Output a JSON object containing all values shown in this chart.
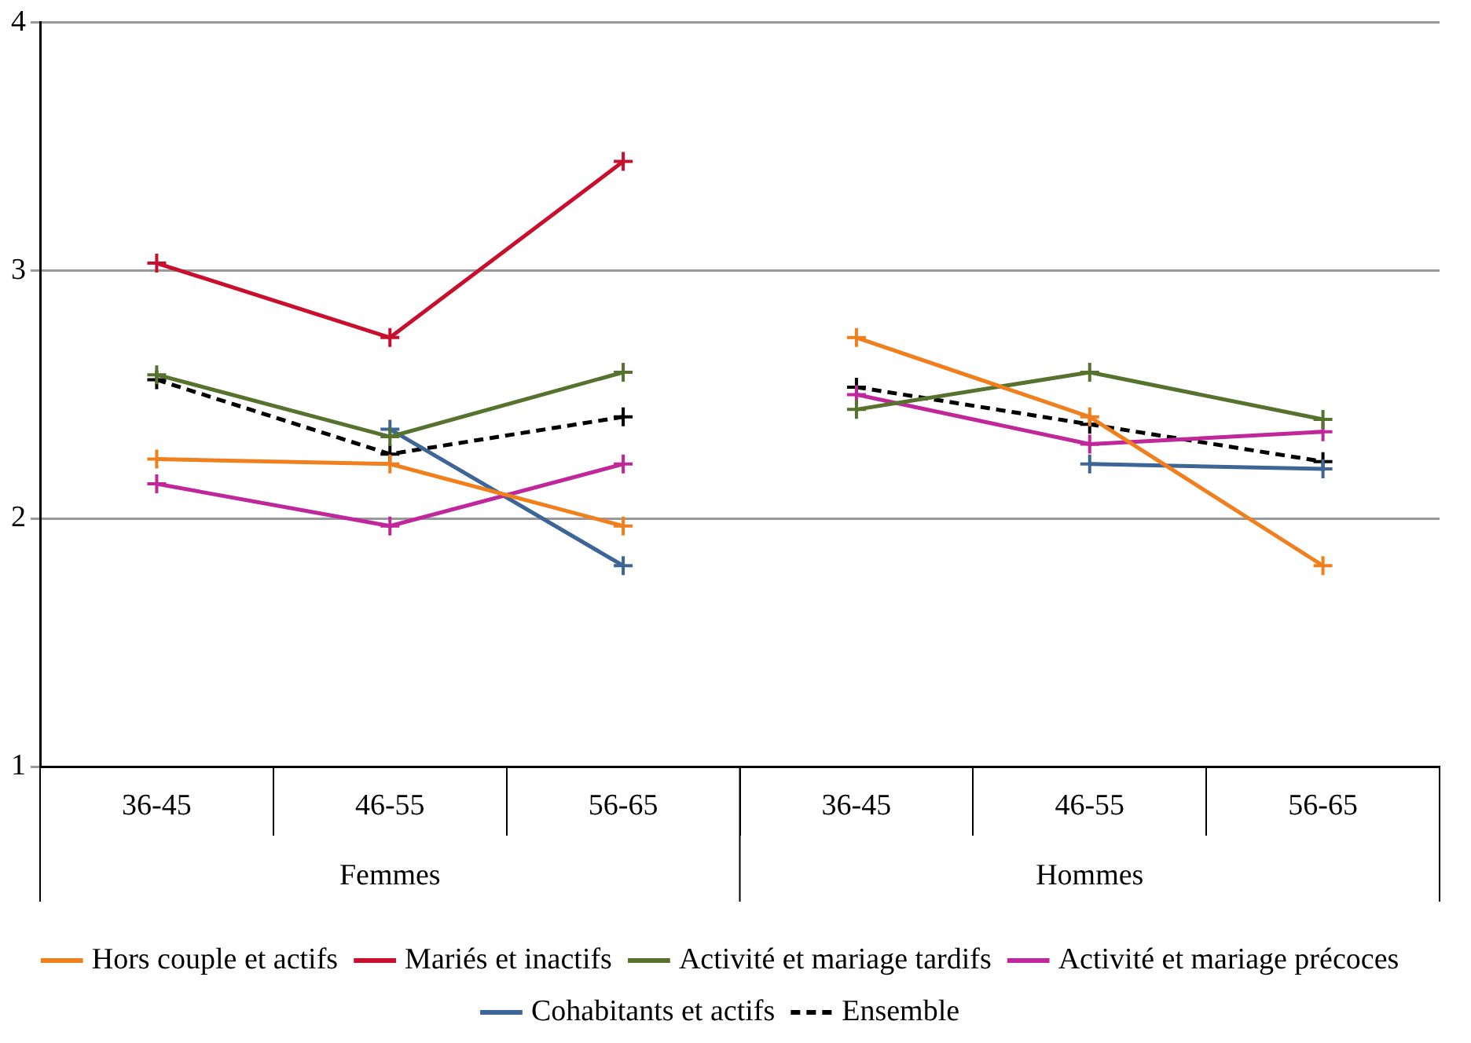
{
  "chart_data": {
    "type": "line",
    "categories": [
      "36-45",
      "46-55",
      "56-65",
      "36-45",
      "46-55",
      "56-65"
    ],
    "annotations": [
      "Femmes",
      "Hommes"
    ],
    "ylim": [
      1,
      4
    ],
    "yticks": [
      1,
      2,
      3,
      4
    ],
    "grid": "y",
    "legend": "bottom",
    "marker": "cross",
    "line_style": "solid",
    "series": [
      {
        "name": "Hors couple et actifs",
        "color": "#f07f1e",
        "values": [
          2.24,
          2.22,
          1.97,
          2.73,
          2.41,
          1.81
        ]
      },
      {
        "name": "Mariés et inactifs",
        "color": "#c8102e",
        "values": [
          3.03,
          2.73,
          3.44,
          null,
          null,
          null
        ]
      },
      {
        "name": "Activité et mariage tardifs",
        "color": "#56722e",
        "values": [
          2.58,
          2.33,
          2.59,
          2.44,
          2.59,
          2.4
        ]
      },
      {
        "name": "Activité et mariage précoces",
        "color": "#c0279a",
        "values": [
          2.14,
          1.97,
          2.22,
          2.5,
          2.3,
          2.35
        ]
      },
      {
        "name": "Cohabitants et actifs",
        "color": "#3d6596",
        "values": [
          null,
          2.36,
          1.81,
          null,
          2.22,
          2.2
        ]
      },
      {
        "name": "Ensemble",
        "color": "#000000",
        "line_style": "dashed",
        "values": [
          2.56,
          2.26,
          2.41,
          2.53,
          2.38,
          2.23
        ]
      }
    ]
  }
}
